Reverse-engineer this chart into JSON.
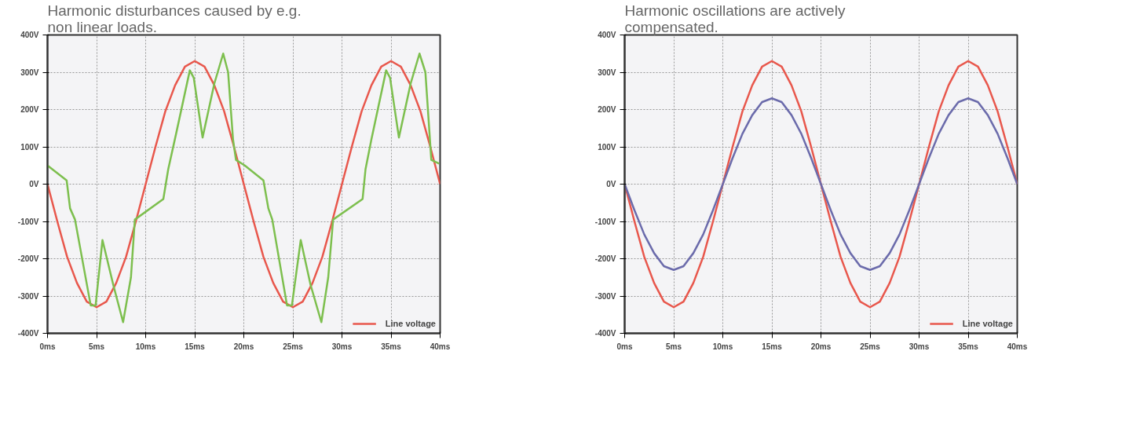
{
  "chart_data": [
    {
      "type": "line",
      "title": "Harmonic disturbances caused by e.g.\nnon linear loads.",
      "xlim": [
        0,
        40
      ],
      "ylim": [
        -400,
        400
      ],
      "xticks": [
        {
          "value": 0,
          "label": "0ms"
        },
        {
          "value": 5,
          "label": "5ms"
        },
        {
          "value": 10,
          "label": "10ms"
        },
        {
          "value": 15,
          "label": "15ms"
        },
        {
          "value": 20,
          "label": "20ms"
        },
        {
          "value": 25,
          "label": "25ms"
        },
        {
          "value": 30,
          "label": "30ms"
        },
        {
          "value": 35,
          "label": "35ms"
        },
        {
          "value": 40,
          "label": "40ms"
        }
      ],
      "yticks": [
        {
          "value": -400,
          "label": "-400V"
        },
        {
          "value": -300,
          "label": "-300V"
        },
        {
          "value": -200,
          "label": "-200V"
        },
        {
          "value": -100,
          "label": "-100V"
        },
        {
          "value": 0,
          "label": "0V"
        },
        {
          "value": 100,
          "label": "100V"
        },
        {
          "value": 200,
          "label": "200V"
        },
        {
          "value": 300,
          "label": "300V"
        },
        {
          "value": 400,
          "label": "400V"
        }
      ],
      "grid": true,
      "legend": "bottom right",
      "line_style": "solid",
      "series": [
        {
          "name": "Line voltage",
          "color": "#e8574c",
          "x": [
            0,
            1,
            2,
            3,
            4,
            5,
            6,
            7,
            8,
            9,
            10,
            11,
            12,
            13,
            14,
            15,
            16,
            17,
            18,
            19,
            20,
            21,
            22,
            23,
            24,
            25,
            26,
            27,
            28,
            29,
            30,
            31,
            32,
            33,
            34,
            35,
            36,
            37,
            38,
            39,
            40
          ],
          "values": [
            0,
            -100,
            -195,
            -265,
            -315,
            -330,
            -315,
            -265,
            -195,
            -100,
            0,
            100,
            195,
            265,
            315,
            330,
            315,
            265,
            195,
            100,
            0,
            -100,
            -195,
            -265,
            -315,
            -330,
            -315,
            -265,
            -195,
            -100,
            0,
            100,
            195,
            265,
            315,
            330,
            315,
            265,
            195,
            100,
            0
          ]
        },
        {
          "color": "#7dbf4e",
          "x": [
            0,
            1.95,
            2.3,
            2.8,
            4.4,
            4.9,
            5.6,
            6.7,
            7.7,
            8.5,
            8.9,
            11.8,
            12.3,
            13.1,
            14.5,
            14.9,
            15.8,
            17,
            17.9,
            18.4,
            18.9,
            19.2,
            20.1,
            22,
            22.5,
            22.9,
            24.4,
            24.9,
            25.8,
            26.8,
            27.9,
            28.6,
            29.1,
            32.1,
            32.4,
            33,
            34.5,
            34.9,
            35.8,
            37,
            37.9,
            38.5,
            39.1,
            39.9
          ],
          "values": [
            50,
            10,
            -65,
            -95,
            -325,
            -325,
            -150,
            -270,
            -370,
            -250,
            -95,
            -40,
            40,
            135,
            305,
            285,
            125,
            270,
            350,
            300,
            120,
            65,
            50,
            10,
            -65,
            -95,
            -325,
            -325,
            -150,
            -270,
            -370,
            -250,
            -95,
            -40,
            40,
            120,
            305,
            285,
            125,
            270,
            350,
            300,
            65,
            55
          ]
        }
      ]
    },
    {
      "type": "line",
      "title": "Harmonic oscillations are actively\ncompensated.",
      "xlim": [
        0,
        40
      ],
      "ylim": [
        -400,
        400
      ],
      "xticks": [
        {
          "value": 0,
          "label": "0ms"
        },
        {
          "value": 5,
          "label": "5ms"
        },
        {
          "value": 10,
          "label": "10ms"
        },
        {
          "value": 15,
          "label": "15ms"
        },
        {
          "value": 20,
          "label": "20ms"
        },
        {
          "value": 25,
          "label": "25ms"
        },
        {
          "value": 30,
          "label": "30ms"
        },
        {
          "value": 35,
          "label": "35ms"
        },
        {
          "value": 40,
          "label": "40ms"
        }
      ],
      "yticks": [
        {
          "value": -400,
          "label": "-400V"
        },
        {
          "value": -300,
          "label": "-300V"
        },
        {
          "value": -200,
          "label": "-200V"
        },
        {
          "value": -100,
          "label": "-100V"
        },
        {
          "value": 0,
          "label": "0V"
        },
        {
          "value": 100,
          "label": "100V"
        },
        {
          "value": 200,
          "label": "200V"
        },
        {
          "value": 300,
          "label": "300V"
        },
        {
          "value": 400,
          "label": "400V"
        }
      ],
      "grid": true,
      "legend": "bottom right",
      "line_style": "solid",
      "series": [
        {
          "name": "Line voltage",
          "color": "#e8574c",
          "x": [
            0,
            1,
            2,
            3,
            4,
            5,
            6,
            7,
            8,
            9,
            10,
            11,
            12,
            13,
            14,
            15,
            16,
            17,
            18,
            19,
            20,
            21,
            22,
            23,
            24,
            25,
            26,
            27,
            28,
            29,
            30,
            31,
            32,
            33,
            34,
            35,
            36,
            37,
            38,
            39,
            40
          ],
          "values": [
            0,
            -100,
            -195,
            -265,
            -315,
            -330,
            -315,
            -265,
            -195,
            -100,
            0,
            100,
            195,
            265,
            315,
            330,
            315,
            265,
            195,
            100,
            0,
            -100,
            -195,
            -265,
            -315,
            -330,
            -315,
            -265,
            -195,
            -100,
            0,
            100,
            195,
            265,
            315,
            330,
            315,
            265,
            195,
            100,
            0
          ]
        },
        {
          "color": "#6b6bab",
          "x": [
            0,
            1,
            2,
            3,
            4,
            5,
            6,
            7,
            8,
            9,
            10,
            11,
            12,
            13,
            14,
            15,
            16,
            17,
            18,
            19,
            20,
            21,
            22,
            23,
            24,
            25,
            26,
            27,
            28,
            29,
            30,
            31,
            32,
            33,
            34,
            35,
            36,
            37,
            38,
            39,
            40
          ],
          "values": [
            0,
            -70,
            -135,
            -185,
            -220,
            -230,
            -220,
            -185,
            -135,
            -70,
            0,
            70,
            135,
            185,
            220,
            230,
            220,
            185,
            135,
            70,
            0,
            -70,
            -135,
            -185,
            -220,
            -230,
            -220,
            -185,
            -135,
            -70,
            0,
            70,
            135,
            185,
            220,
            230,
            220,
            185,
            135,
            70,
            0
          ]
        }
      ]
    }
  ]
}
